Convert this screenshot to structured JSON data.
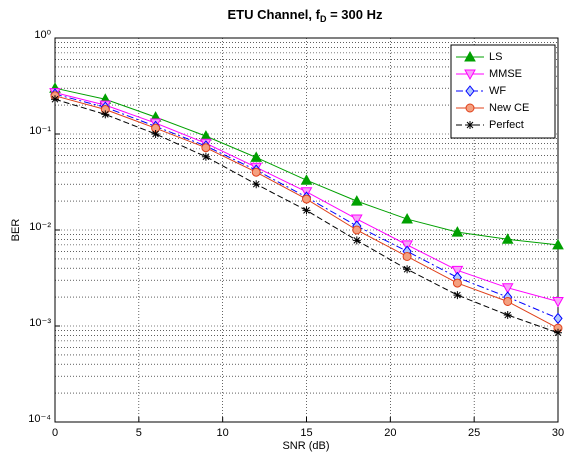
{
  "chart_data": {
    "type": "line",
    "title": [
      "ETU Channel, f",
      "D",
      " = 300 Hz"
    ],
    "xlabel": "SNR (dB)",
    "ylabel": "BER",
    "x": [
      0,
      3,
      6,
      9,
      12,
      15,
      18,
      21,
      24,
      27,
      30
    ],
    "xlim": [
      0,
      30
    ],
    "xticks": [
      0,
      5,
      10,
      15,
      20,
      25,
      30
    ],
    "ylim": [
      0.0001,
      1
    ],
    "yscale": "log",
    "yticks": [
      {
        "value": 0.0001,
        "label": "10⁻⁴"
      },
      {
        "value": 0.001,
        "label": "10⁻³"
      },
      {
        "value": 0.01,
        "label": "10⁻²"
      },
      {
        "value": 0.1,
        "label": "10⁻¹"
      },
      {
        "value": 1,
        "label": "10⁰"
      }
    ],
    "grid": true,
    "legend": "upper right",
    "series": [
      {
        "name": "LS",
        "color": "#00a000",
        "marker": "triangle-up",
        "dash": "solid",
        "values": [
          0.3,
          0.23,
          0.15,
          0.095,
          0.057,
          0.033,
          0.02,
          0.013,
          0.0095,
          0.008,
          0.007
        ]
      },
      {
        "name": "MMSE",
        "color": "#ff00ff",
        "marker": "triangle-down",
        "dash": "solid",
        "values": [
          0.27,
          0.2,
          0.13,
          0.08,
          0.045,
          0.025,
          0.013,
          0.007,
          0.0038,
          0.0025,
          0.0018
        ]
      },
      {
        "name": "WF",
        "color": "#0000ff",
        "marker": "diamond",
        "dash": "dashdot",
        "values": [
          0.26,
          0.19,
          0.12,
          0.075,
          0.042,
          0.022,
          0.011,
          0.006,
          0.0032,
          0.002,
          0.0012
        ]
      },
      {
        "name": "New CE",
        "color": "#e0401a",
        "marker": "circle",
        "dash": "solid",
        "values": [
          0.25,
          0.18,
          0.115,
          0.072,
          0.04,
          0.021,
          0.01,
          0.0053,
          0.0028,
          0.0018,
          0.00095
        ]
      },
      {
        "name": "Perfect",
        "color": "#000000",
        "marker": "star",
        "dash": "dashed",
        "values": [
          0.23,
          0.16,
          0.1,
          0.058,
          0.03,
          0.016,
          0.0078,
          0.0039,
          0.0021,
          0.0013,
          0.00085
        ]
      }
    ]
  }
}
